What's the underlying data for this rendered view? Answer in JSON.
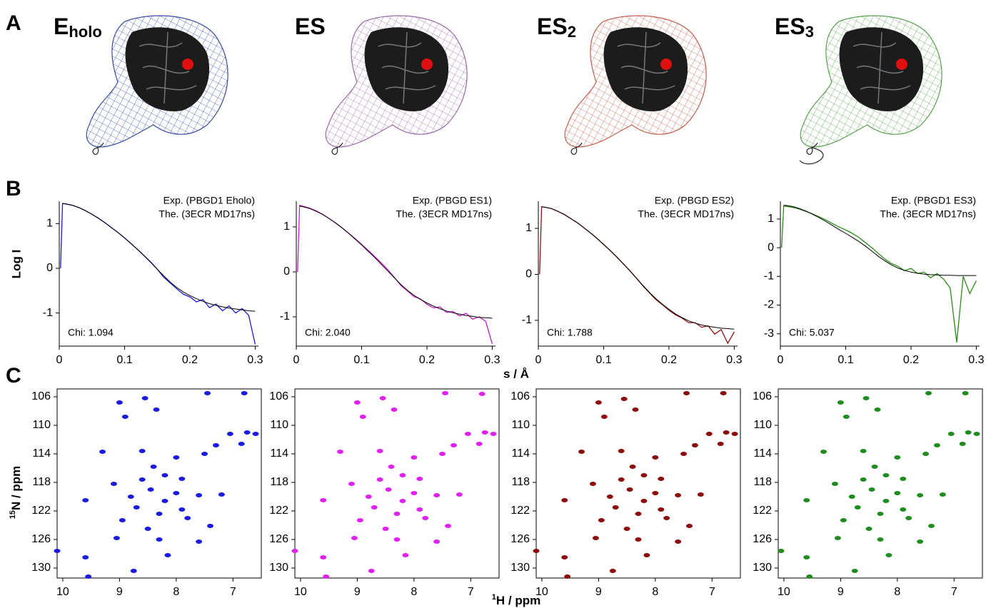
{
  "figure": {
    "panel_labels": [
      "A",
      "B",
      "C"
    ],
    "structures": [
      {
        "main": "E",
        "sub": "holo",
        "color": "#3b4ba5"
      },
      {
        "main": "ES",
        "color": "#9a6aa8"
      },
      {
        "main": "ES",
        "sub": "2",
        "color": "#c0604e"
      },
      {
        "main": "ES",
        "sub": "3",
        "color": "#5aa050"
      }
    ],
    "saxs_y_label": "Log I",
    "saxs_x_label": "s / Å",
    "nmr_y_label": {
      "sup": "15",
      "main": "N / ppm"
    },
    "nmr_x_label": {
      "sup": "1",
      "main": "H / ppm"
    }
  },
  "chart_data": [
    {
      "type": "line",
      "annotation": "Chi: 1.094",
      "xlim": [
        0,
        0.305
      ],
      "xticks": [
        0,
        0.1,
        0.2,
        0.3
      ],
      "ylim": [
        -1.74,
        1.5
      ],
      "yticks": [
        -1,
        0,
        1
      ],
      "x": [
        0.002,
        0.005,
        0.01,
        0.02,
        0.03,
        0.04,
        0.05,
        0.06,
        0.07,
        0.08,
        0.09,
        0.1,
        0.11,
        0.12,
        0.13,
        0.14,
        0.15,
        0.16,
        0.17,
        0.18,
        0.19,
        0.2,
        0.21,
        0.22,
        0.23,
        0.24,
        0.25,
        0.26,
        0.27,
        0.28,
        0.29,
        0.3
      ],
      "series": [
        {
          "name": "Exp. (PBGD1 Eholo)",
          "color": "#1a1ad0",
          "values": [
            0.0,
            1.45,
            1.44,
            1.41,
            1.36,
            1.29,
            1.21,
            1.12,
            1.02,
            0.91,
            0.8,
            0.68,
            0.55,
            0.42,
            0.28,
            0.14,
            -0.02,
            -0.2,
            -0.33,
            -0.46,
            -0.58,
            -0.64,
            -0.75,
            -0.7,
            -0.88,
            -0.8,
            -0.95,
            -0.84,
            -1.0,
            -0.9,
            -1.05,
            -1.7
          ]
        },
        {
          "name": "The. (3ECR MD17ns)",
          "color": "#000000",
          "values": [
            null,
            1.45,
            1.44,
            1.41,
            1.36,
            1.29,
            1.21,
            1.12,
            1.02,
            0.91,
            0.8,
            0.68,
            0.55,
            0.42,
            0.28,
            0.13,
            -0.02,
            -0.17,
            -0.31,
            -0.43,
            -0.53,
            -0.61,
            -0.68,
            -0.74,
            -0.79,
            -0.83,
            -0.86,
            -0.89,
            -0.91,
            -0.93,
            -0.95,
            -0.96
          ]
        }
      ]
    },
    {
      "type": "line",
      "annotation": "Chi: 2.040",
      "xlim": [
        0,
        0.305
      ],
      "xticks": [
        0,
        0.1,
        0.2,
        0.3
      ],
      "ylim": [
        -1.65,
        1.57
      ],
      "yticks": [
        -1,
        0,
        1
      ],
      "x": [
        0.002,
        0.005,
        0.01,
        0.02,
        0.03,
        0.04,
        0.05,
        0.06,
        0.07,
        0.08,
        0.09,
        0.1,
        0.11,
        0.12,
        0.13,
        0.14,
        0.15,
        0.16,
        0.17,
        0.18,
        0.19,
        0.2,
        0.21,
        0.22,
        0.23,
        0.24,
        0.25,
        0.26,
        0.27,
        0.28,
        0.29,
        0.3
      ],
      "series": [
        {
          "name": "Exp. (PBGD ES1)",
          "color": "#c020c8",
          "values": [
            0.0,
            1.48,
            1.46,
            1.42,
            1.36,
            1.28,
            1.19,
            1.09,
            0.98,
            0.86,
            0.74,
            0.61,
            0.48,
            0.34,
            0.2,
            0.05,
            -0.12,
            -0.3,
            -0.42,
            -0.55,
            -0.6,
            -0.72,
            -0.8,
            -0.78,
            -0.9,
            -0.88,
            -0.98,
            -0.92,
            -1.05,
            -1.0,
            -1.1,
            -1.6
          ]
        },
        {
          "name": "The. (3ECR MD17ns)",
          "color": "#000000",
          "values": [
            null,
            1.46,
            1.45,
            1.41,
            1.35,
            1.28,
            1.19,
            1.09,
            0.98,
            0.86,
            0.73,
            0.6,
            0.46,
            0.32,
            0.17,
            0.02,
            -0.13,
            -0.28,
            -0.41,
            -0.52,
            -0.61,
            -0.69,
            -0.76,
            -0.82,
            -0.87,
            -0.91,
            -0.94,
            -0.97,
            -0.99,
            -1.01,
            -1.02,
            -1.03
          ]
        }
      ]
    },
    {
      "type": "line",
      "annotation": "Chi: 1.788",
      "xlim": [
        0,
        0.305
      ],
      "xticks": [
        0,
        0.1,
        0.2,
        0.3
      ],
      "ylim": [
        -1.56,
        1.59
      ],
      "yticks": [
        -1,
        0,
        1
      ],
      "x": [
        0.002,
        0.005,
        0.01,
        0.02,
        0.03,
        0.04,
        0.05,
        0.06,
        0.07,
        0.08,
        0.09,
        0.1,
        0.11,
        0.12,
        0.13,
        0.14,
        0.15,
        0.16,
        0.17,
        0.18,
        0.19,
        0.2,
        0.21,
        0.22,
        0.23,
        0.24,
        0.25,
        0.26,
        0.27,
        0.28,
        0.29,
        0.3
      ],
      "series": [
        {
          "name": "Exp. (PBGD ES2)",
          "color": "#8b1212",
          "values": [
            0.0,
            1.47,
            1.46,
            1.43,
            1.37,
            1.3,
            1.21,
            1.12,
            1.01,
            0.9,
            0.78,
            0.65,
            0.52,
            0.38,
            0.23,
            0.08,
            -0.08,
            -0.25,
            -0.4,
            -0.55,
            -0.66,
            -0.78,
            -0.88,
            -0.95,
            -1.05,
            -1.05,
            -1.15,
            -1.12,
            -1.3,
            -1.2,
            -1.5,
            -1.25
          ]
        },
        {
          "name": "The. (3ECR MD17ns)",
          "color": "#000000",
          "values": [
            null,
            1.47,
            1.46,
            1.43,
            1.37,
            1.3,
            1.21,
            1.12,
            1.01,
            0.9,
            0.78,
            0.65,
            0.52,
            0.38,
            0.23,
            0.08,
            -0.08,
            -0.24,
            -0.39,
            -0.53,
            -0.65,
            -0.76,
            -0.86,
            -0.94,
            -1.01,
            -1.06,
            -1.1,
            -1.13,
            -1.15,
            -1.17,
            -1.18,
            -1.19
          ]
        }
      ]
    },
    {
      "type": "line",
      "annotation": "Chi: 5.037",
      "xlim": [
        0,
        0.305
      ],
      "xticks": [
        0,
        0.1,
        0.2,
        0.3
      ],
      "ylim": [
        -3.43,
        1.62
      ],
      "yticks": [
        -3,
        -2,
        -1,
        0,
        1
      ],
      "x": [
        0.002,
        0.005,
        0.01,
        0.02,
        0.03,
        0.04,
        0.05,
        0.06,
        0.07,
        0.08,
        0.09,
        0.1,
        0.11,
        0.12,
        0.13,
        0.14,
        0.15,
        0.16,
        0.17,
        0.18,
        0.19,
        0.2,
        0.21,
        0.22,
        0.23,
        0.24,
        0.25,
        0.26,
        0.27,
        0.28,
        0.29,
        0.3
      ],
      "series": [
        {
          "name": "Exp. (PBGD1 ES3)",
          "color": "#2a8a18",
          "values": [
            0.0,
            1.45,
            1.44,
            1.4,
            1.34,
            1.26,
            1.17,
            1.07,
            0.96,
            0.84,
            0.72,
            0.62,
            0.5,
            0.36,
            0.18,
            0.0,
            -0.2,
            -0.4,
            -0.55,
            -0.65,
            -0.8,
            -0.72,
            -0.9,
            -0.85,
            -1.05,
            -0.9,
            -1.1,
            -1.4,
            -3.3,
            -1.0,
            -1.6,
            -1.15
          ]
        },
        {
          "name": "The. (3ECR MD17ns)",
          "color": "#000000",
          "values": [
            null,
            1.48,
            1.47,
            1.43,
            1.36,
            1.27,
            1.16,
            1.04,
            0.91,
            0.77,
            0.63,
            0.5,
            0.36,
            0.22,
            0.06,
            -0.12,
            -0.3,
            -0.46,
            -0.6,
            -0.71,
            -0.79,
            -0.85,
            -0.89,
            -0.92,
            -0.94,
            -0.95,
            -0.96,
            -0.96,
            -0.97,
            -0.97,
            -0.97,
            -0.97
          ]
        }
      ]
    },
    {
      "type": "scatter",
      "color": "#1a1ae0",
      "xlim": [
        10.1,
        6.5
      ],
      "xticks": [
        10,
        9,
        8,
        7
      ],
      "ylim": [
        131.4,
        104.9
      ],
      "yticks": [
        106,
        110,
        114,
        118,
        122,
        126,
        130
      ],
      "x": [
        7.45,
        6.8,
        8.55,
        9.0,
        8.35,
        8.9,
        7.05,
        6.75,
        6.6,
        7.3,
        6.85,
        9.3,
        8.6,
        8.0,
        7.5,
        8.4,
        8.2,
        7.9,
        8.6,
        9.1,
        8.45,
        8.0,
        7.6,
        7.2,
        8.8,
        8.2,
        9.6,
        8.7,
        7.9,
        8.3,
        7.8,
        8.95,
        8.5,
        7.4,
        9.05,
        8.3,
        7.6,
        8.15,
        9.6,
        10.1,
        8.75,
        9.55
      ],
      "values": [
        105.5,
        105.5,
        106.2,
        106.8,
        107.8,
        108.8,
        111.2,
        111.0,
        111.2,
        112.8,
        112.6,
        113.7,
        113.6,
        114.5,
        114.0,
        115.8,
        117.0,
        117.5,
        117.6,
        118.2,
        119.0,
        119.5,
        119.8,
        119.7,
        120.0,
        120.6,
        120.5,
        121.5,
        121.8,
        122.4,
        123.0,
        123.3,
        124.5,
        124.1,
        125.8,
        126.0,
        126.3,
        128.2,
        128.5,
        127.6,
        130.4,
        131.2
      ]
    },
    {
      "type": "scatter",
      "color": "#e020f0",
      "xlim": [
        10.1,
        6.5
      ],
      "xticks": [
        10,
        9,
        8,
        7
      ],
      "ylim": [
        131.4,
        104.9
      ],
      "yticks": [
        106,
        110,
        114,
        118,
        122,
        126,
        130
      ],
      "x": [
        7.45,
        6.8,
        8.55,
        9.0,
        8.35,
        8.9,
        7.05,
        6.75,
        6.6,
        7.3,
        6.85,
        9.3,
        8.6,
        8.0,
        7.5,
        8.4,
        8.2,
        7.9,
        8.6,
        9.1,
        8.45,
        8.0,
        7.6,
        7.2,
        8.8,
        8.2,
        9.6,
        8.7,
        7.9,
        8.3,
        7.8,
        8.95,
        8.5,
        7.4,
        9.05,
        8.3,
        7.6,
        8.15,
        9.6,
        10.1,
        8.75,
        9.55
      ],
      "values": [
        105.5,
        105.6,
        106.2,
        106.8,
        107.8,
        108.8,
        111.2,
        111.0,
        111.2,
        112.8,
        112.6,
        113.7,
        113.6,
        114.5,
        114.0,
        115.8,
        117.0,
        117.5,
        117.6,
        118.2,
        119.0,
        119.5,
        119.8,
        119.7,
        120.0,
        120.6,
        120.5,
        121.5,
        121.8,
        122.4,
        123.0,
        123.3,
        124.5,
        124.1,
        125.8,
        126.0,
        126.3,
        128.2,
        128.5,
        127.6,
        130.4,
        131.2
      ]
    },
    {
      "type": "scatter",
      "color": "#8b0a0a",
      "xlim": [
        10.1,
        6.5
      ],
      "xticks": [
        10,
        9,
        8,
        7
      ],
      "ylim": [
        131.4,
        104.9
      ],
      "yticks": [
        106,
        110,
        114,
        118,
        122,
        126,
        130
      ],
      "x": [
        7.45,
        6.8,
        8.55,
        9.0,
        8.35,
        8.9,
        7.05,
        6.75,
        6.6,
        7.3,
        6.85,
        9.3,
        8.6,
        8.0,
        7.5,
        8.4,
        8.2,
        7.9,
        8.6,
        9.1,
        8.45,
        8.0,
        7.6,
        7.2,
        8.8,
        8.2,
        9.6,
        8.7,
        7.9,
        8.3,
        7.8,
        8.95,
        8.5,
        7.4,
        9.05,
        8.3,
        7.6,
        8.15,
        9.6,
        10.1,
        8.75,
        9.55
      ],
      "values": [
        105.5,
        105.5,
        106.3,
        106.8,
        107.8,
        108.8,
        111.2,
        111.0,
        111.2,
        112.8,
        112.6,
        113.7,
        113.6,
        114.5,
        114.0,
        115.8,
        117.0,
        117.5,
        117.6,
        118.2,
        119.0,
        119.5,
        119.8,
        119.7,
        120.0,
        120.6,
        120.5,
        121.5,
        121.8,
        122.4,
        123.0,
        123.3,
        124.5,
        124.1,
        125.8,
        126.0,
        126.3,
        128.2,
        128.5,
        127.6,
        130.4,
        131.2
      ]
    },
    {
      "type": "scatter",
      "color": "#1e8c1e",
      "xlim": [
        10.1,
        6.5
      ],
      "xticks": [
        10,
        9,
        8,
        7
      ],
      "ylim": [
        131.4,
        104.9
      ],
      "yticks": [
        106,
        110,
        114,
        118,
        122,
        126,
        130
      ],
      "x": [
        7.45,
        6.8,
        8.55,
        9.0,
        8.35,
        8.9,
        7.05,
        6.75,
        6.6,
        7.3,
        6.85,
        9.3,
        8.6,
        8.0,
        7.5,
        8.4,
        8.2,
        7.9,
        8.6,
        9.1,
        8.45,
        8.0,
        7.6,
        7.2,
        8.8,
        8.2,
        9.6,
        8.7,
        7.9,
        8.3,
        7.8,
        8.95,
        8.5,
        7.4,
        9.05,
        8.3,
        7.6,
        8.15,
        9.6,
        10.05,
        8.75,
        9.55
      ],
      "values": [
        105.5,
        105.5,
        106.2,
        106.8,
        107.8,
        108.8,
        111.2,
        111.0,
        111.2,
        112.8,
        112.6,
        113.7,
        113.6,
        114.5,
        114.0,
        115.8,
        117.0,
        117.5,
        117.6,
        118.2,
        119.0,
        119.5,
        119.8,
        119.7,
        120.0,
        120.6,
        120.5,
        121.5,
        121.8,
        122.4,
        123.0,
        123.3,
        124.5,
        124.1,
        125.8,
        126.0,
        126.3,
        128.2,
        128.5,
        127.6,
        130.4,
        131.2
      ]
    }
  ]
}
